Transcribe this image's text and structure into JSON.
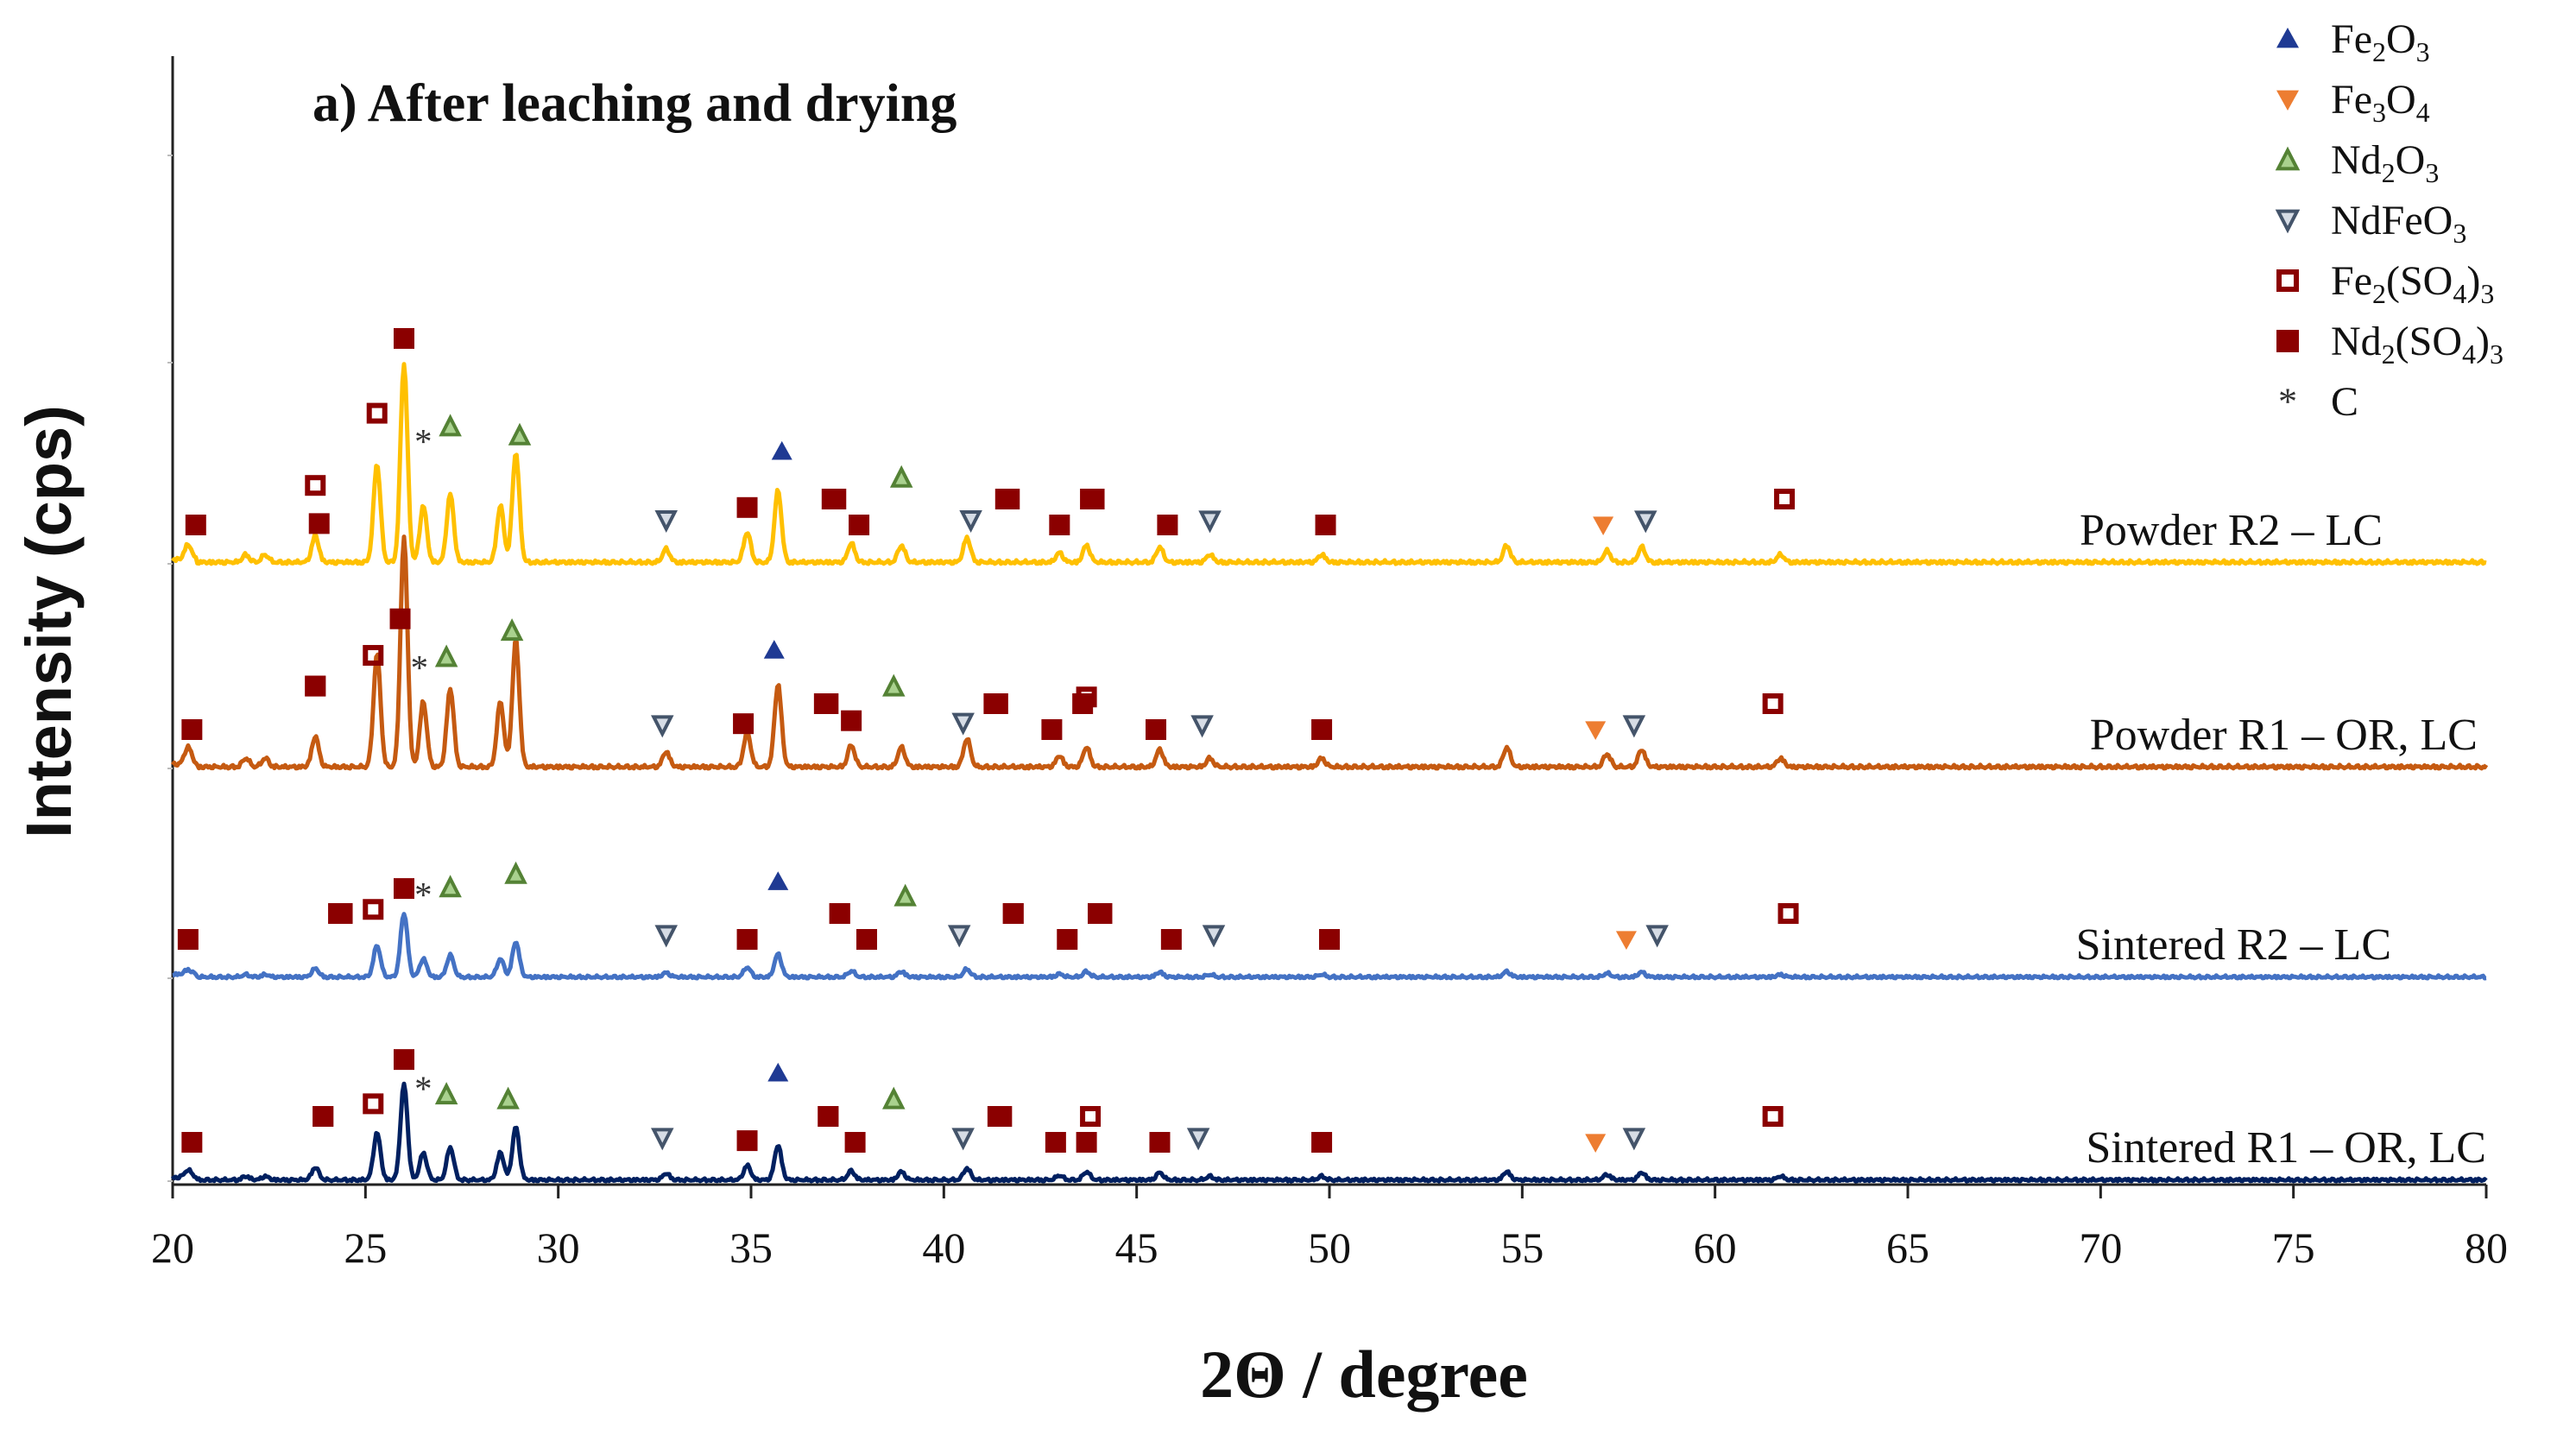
{
  "chart_data": {
    "type": "line",
    "title": "a) After leaching and drying",
    "xlabel": "2Θ / degree",
    "ylabel": "Intensity (cps)",
    "xlim": [
      20,
      80
    ],
    "x_ticks": [
      "20",
      "25",
      "30",
      "35",
      "40",
      "45",
      "50",
      "55",
      "60",
      "65",
      "70",
      "75",
      "80"
    ],
    "grid": false,
    "series": [
      {
        "name": "Powder R2 – LC",
        "label": "Powder R2 – LC",
        "color": "#ffc000",
        "baseline_level": 4,
        "peak_scale": 1.0
      },
      {
        "name": "Powder R1 – OR, LC",
        "label": "Powder R1 – OR, LC",
        "color": "#c55a11",
        "baseline_level": 3,
        "peak_scale": 1.15
      },
      {
        "name": "Sintered R2 – LC",
        "label": "Sintered R2 – LC",
        "color": "#4472c4",
        "baseline_level": 2,
        "peak_scale": 0.32
      },
      {
        "name": "Sintered R1 – OR, LC",
        "label": "Sintered R1 – OR, LC",
        "color": "#002060",
        "baseline_level": 1,
        "peak_scale": 0.48
      }
    ],
    "peaks_2theta": [
      {
        "x": 20.4,
        "h": 8
      },
      {
        "x": 21.9,
        "h": 4
      },
      {
        "x": 22.4,
        "h": 4
      },
      {
        "x": 23.7,
        "h": 14
      },
      {
        "x": 25.3,
        "h": 52
      },
      {
        "x": 26.0,
        "h": 105
      },
      {
        "x": 26.5,
        "h": 30
      },
      {
        "x": 27.2,
        "h": 36
      },
      {
        "x": 28.5,
        "h": 30
      },
      {
        "x": 28.9,
        "h": 58
      },
      {
        "x": 32.8,
        "h": 7
      },
      {
        "x": 34.9,
        "h": 16
      },
      {
        "x": 35.7,
        "h": 38
      },
      {
        "x": 37.6,
        "h": 10
      },
      {
        "x": 38.9,
        "h": 9
      },
      {
        "x": 40.6,
        "h": 13
      },
      {
        "x": 43.0,
        "h": 5
      },
      {
        "x": 43.7,
        "h": 9
      },
      {
        "x": 45.6,
        "h": 8
      },
      {
        "x": 46.9,
        "h": 4
      },
      {
        "x": 49.8,
        "h": 4
      },
      {
        "x": 54.6,
        "h": 9
      },
      {
        "x": 57.2,
        "h": 6
      },
      {
        "x": 58.1,
        "h": 8
      },
      {
        "x": 61.7,
        "h": 4
      }
    ],
    "legend": {
      "position": "top-right",
      "entries": [
        {
          "symbol": "triangle-up",
          "color": "#1f3a93",
          "name": "Fe",
          "sub1": "2",
          "mid": "O",
          "sub2": "3",
          "end": "",
          "sub3": ""
        },
        {
          "symbol": "triangle-down",
          "color": "#ed7d31",
          "name": "Fe",
          "sub1": "3",
          "mid": "O",
          "sub2": "4",
          "end": "",
          "sub3": ""
        },
        {
          "symbol": "triangle-up-open",
          "color": "#548235",
          "name": "Nd",
          "sub1": "2",
          "mid": "O",
          "sub2": "3",
          "end": "",
          "sub3": ""
        },
        {
          "symbol": "triangle-down-open",
          "color": "#44546a",
          "name": "NdFeO",
          "sub1": "3",
          "mid": "",
          "sub2": "",
          "end": "",
          "sub3": ""
        },
        {
          "symbol": "square-open",
          "color": "#8b0000",
          "name": "Fe",
          "sub1": "2",
          "mid": "(SO",
          "sub2": "4",
          "end": ")",
          "sub3": "3"
        },
        {
          "symbol": "square",
          "color": "#8b0000",
          "name": "Nd",
          "sub1": "2",
          "mid": "(SO",
          "sub2": "4",
          "end": ")",
          "sub3": "3"
        },
        {
          "symbol": "star",
          "color": "#333333",
          "name": "C",
          "sub1": "",
          "mid": "",
          "sub2": "",
          "end": "",
          "sub3": ""
        }
      ]
    },
    "markers": [
      {
        "series": 0,
        "type": "square",
        "x": 20.6
      },
      {
        "series": 0,
        "type": "square-open",
        "x": 23.7
      },
      {
        "series": 0,
        "type": "square",
        "x": 23.8
      },
      {
        "series": 0,
        "type": "square-open",
        "x": 25.3
      },
      {
        "series": 0,
        "type": "square",
        "x": 26.0
      },
      {
        "series": 0,
        "type": "star",
        "x": 26.5
      },
      {
        "series": 0,
        "type": "triangle-up-open",
        "x": 27.2
      },
      {
        "series": 0,
        "type": "triangle-up-open",
        "x": 29.0
      },
      {
        "series": 0,
        "type": "triangle-down-open",
        "x": 32.8
      },
      {
        "series": 0,
        "type": "square",
        "x": 34.9
      },
      {
        "series": 0,
        "type": "triangle-up",
        "x": 35.8
      },
      {
        "series": 0,
        "type": "square-open",
        "x": 37.1
      },
      {
        "series": 0,
        "type": "square",
        "x": 37.2
      },
      {
        "series": 0,
        "type": "square",
        "x": 37.8
      },
      {
        "series": 0,
        "type": "triangle-up-open",
        "x": 38.9
      },
      {
        "series": 0,
        "type": "triangle-down-open",
        "x": 40.7
      },
      {
        "series": 0,
        "type": "square-open",
        "x": 41.6
      },
      {
        "series": 0,
        "type": "square",
        "x": 41.7
      },
      {
        "series": 0,
        "type": "square",
        "x": 43.0
      },
      {
        "series": 0,
        "type": "square-open",
        "x": 43.9
      },
      {
        "series": 0,
        "type": "square",
        "x": 43.8
      },
      {
        "series": 0,
        "type": "square",
        "x": 45.8
      },
      {
        "series": 0,
        "type": "triangle-down-open",
        "x": 46.9
      },
      {
        "series": 0,
        "type": "square",
        "x": 49.9
      },
      {
        "series": 0,
        "type": "triangle-down",
        "x": 57.1
      },
      {
        "series": 0,
        "type": "triangle-down-open",
        "x": 58.2
      },
      {
        "series": 0,
        "type": "square-open",
        "x": 61.8
      },
      {
        "series": 1,
        "type": "square",
        "x": 20.5
      },
      {
        "series": 1,
        "type": "square-open",
        "x": 23.7
      },
      {
        "series": 1,
        "type": "square",
        "x": 23.7
      },
      {
        "series": 1,
        "type": "square-open",
        "x": 25.2
      },
      {
        "series": 1,
        "type": "square",
        "x": 25.9
      },
      {
        "series": 1,
        "type": "star",
        "x": 26.4
      },
      {
        "series": 1,
        "type": "triangle-up-open",
        "x": 27.1
      },
      {
        "series": 1,
        "type": "triangle-up-open",
        "x": 28.8
      },
      {
        "series": 1,
        "type": "triangle-down-open",
        "x": 32.7
      },
      {
        "series": 1,
        "type": "square",
        "x": 34.8
      },
      {
        "series": 1,
        "type": "triangle-up",
        "x": 35.6
      },
      {
        "series": 1,
        "type": "square-open",
        "x": 36.9
      },
      {
        "series": 1,
        "type": "square",
        "x": 37.0
      },
      {
        "series": 1,
        "type": "square",
        "x": 37.6
      },
      {
        "series": 1,
        "type": "triangle-up-open",
        "x": 38.7
      },
      {
        "series": 1,
        "type": "triangle-down-open",
        "x": 40.5
      },
      {
        "series": 1,
        "type": "square-open",
        "x": 41.3
      },
      {
        "series": 1,
        "type": "square",
        "x": 41.4
      },
      {
        "series": 1,
        "type": "square",
        "x": 42.8
      },
      {
        "series": 1,
        "type": "square-open",
        "x": 43.7
      },
      {
        "series": 1,
        "type": "square",
        "x": 43.6
      },
      {
        "series": 1,
        "type": "square",
        "x": 45.5
      },
      {
        "series": 1,
        "type": "triangle-down-open",
        "x": 46.7
      },
      {
        "series": 1,
        "type": "square",
        "x": 49.8
      },
      {
        "series": 1,
        "type": "triangle-down",
        "x": 56.9
      },
      {
        "series": 1,
        "type": "triangle-down-open",
        "x": 57.9
      },
      {
        "series": 1,
        "type": "square-open",
        "x": 61.5
      },
      {
        "series": 2,
        "type": "square",
        "x": 20.4
      },
      {
        "series": 2,
        "type": "square-open",
        "x": 24.3
      },
      {
        "series": 2,
        "type": "square",
        "x": 24.4
      },
      {
        "series": 2,
        "type": "square-open",
        "x": 25.2
      },
      {
        "series": 2,
        "type": "square",
        "x": 26.0
      },
      {
        "series": 2,
        "type": "star",
        "x": 26.5
      },
      {
        "series": 2,
        "type": "triangle-up-open",
        "x": 27.2
      },
      {
        "series": 2,
        "type": "triangle-up-open",
        "x": 28.9
      },
      {
        "series": 2,
        "type": "triangle-down-open",
        "x": 32.8
      },
      {
        "series": 2,
        "type": "square",
        "x": 34.9
      },
      {
        "series": 2,
        "type": "triangle-up",
        "x": 35.7
      },
      {
        "series": 2,
        "type": "square-open",
        "x": 37.3
      },
      {
        "series": 2,
        "type": "square",
        "x": 37.3
      },
      {
        "series": 2,
        "type": "square",
        "x": 38.0
      },
      {
        "series": 2,
        "type": "triangle-up-open",
        "x": 39.0
      },
      {
        "series": 2,
        "type": "triangle-down-open",
        "x": 40.4
      },
      {
        "series": 2,
        "type": "square-open",
        "x": 41.8
      },
      {
        "series": 2,
        "type": "square",
        "x": 41.8
      },
      {
        "series": 2,
        "type": "square",
        "x": 43.2
      },
      {
        "series": 2,
        "type": "square-open",
        "x": 44.1
      },
      {
        "series": 2,
        "type": "square",
        "x": 44.0
      },
      {
        "series": 2,
        "type": "square",
        "x": 45.9
      },
      {
        "series": 2,
        "type": "triangle-down-open",
        "x": 47.0
      },
      {
        "series": 2,
        "type": "square",
        "x": 50.0
      },
      {
        "series": 2,
        "type": "triangle-down",
        "x": 57.7
      },
      {
        "series": 2,
        "type": "triangle-down-open",
        "x": 58.5
      },
      {
        "series": 2,
        "type": "square-open",
        "x": 61.9
      },
      {
        "series": 3,
        "type": "square",
        "x": 20.5
      },
      {
        "series": 3,
        "type": "square-open",
        "x": 23.9
      },
      {
        "series": 3,
        "type": "square",
        "x": 23.9
      },
      {
        "series": 3,
        "type": "square-open",
        "x": 25.2
      },
      {
        "series": 3,
        "type": "square",
        "x": 26.0
      },
      {
        "series": 3,
        "type": "star",
        "x": 26.5
      },
      {
        "series": 3,
        "type": "triangle-up-open",
        "x": 27.1
      },
      {
        "series": 3,
        "type": "triangle-up-open",
        "x": 28.7
      },
      {
        "series": 3,
        "type": "triangle-down-open",
        "x": 32.7
      },
      {
        "series": 3,
        "type": "square",
        "x": 34.9
      },
      {
        "series": 3,
        "type": "triangle-up",
        "x": 35.7
      },
      {
        "series": 3,
        "type": "square-open",
        "x": 37.0
      },
      {
        "series": 3,
        "type": "square",
        "x": 37.0
      },
      {
        "series": 3,
        "type": "square",
        "x": 37.7
      },
      {
        "series": 3,
        "type": "triangle-up-open",
        "x": 38.7
      },
      {
        "series": 3,
        "type": "triangle-down-open",
        "x": 40.5
      },
      {
        "series": 3,
        "type": "square-open",
        "x": 41.5
      },
      {
        "series": 3,
        "type": "square",
        "x": 41.4
      },
      {
        "series": 3,
        "type": "square",
        "x": 42.9
      },
      {
        "series": 3,
        "type": "square-open",
        "x": 43.8
      },
      {
        "series": 3,
        "type": "square",
        "x": 43.7
      },
      {
        "series": 3,
        "type": "square",
        "x": 45.6
      },
      {
        "series": 3,
        "type": "triangle-down-open",
        "x": 46.6
      },
      {
        "series": 3,
        "type": "square",
        "x": 49.8
      },
      {
        "series": 3,
        "type": "triangle-down",
        "x": 56.9
      },
      {
        "series": 3,
        "type": "triangle-down-open",
        "x": 57.9
      },
      {
        "series": 3,
        "type": "square-open",
        "x": 61.5
      }
    ]
  }
}
